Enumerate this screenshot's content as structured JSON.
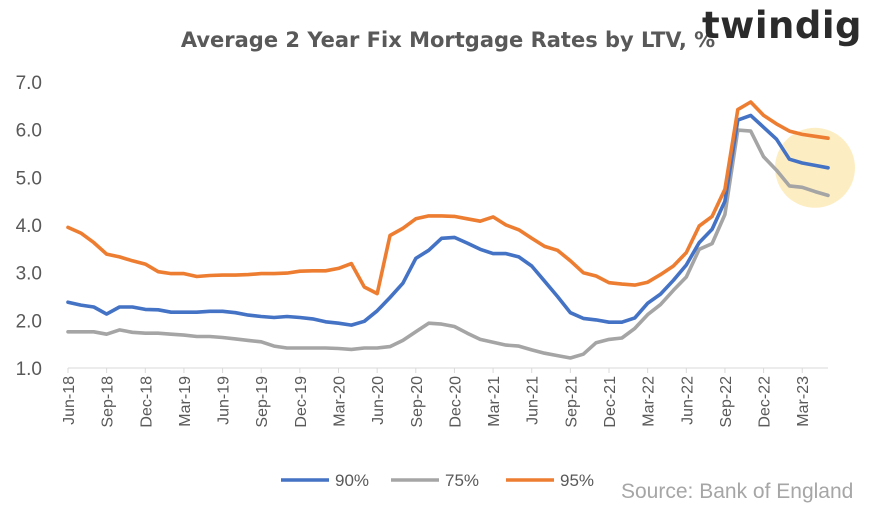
{
  "brand": "twindig",
  "source": "Source: Bank of England",
  "colors": {
    "s90": "#4472c4",
    "s75": "#a5a5a5",
    "s95": "#ed7d31",
    "highlight": "#fdeab8",
    "axis": "#d9d9d9",
    "text": "#595959"
  },
  "chart_data": {
    "type": "line",
    "title": "Average 2 Year Fix Mortgage Rates by LTV, %",
    "xlabel": "",
    "ylabel": "",
    "ylim": [
      1.0,
      7.0
    ],
    "yticks": [
      "1.0",
      "2.0",
      "3.0",
      "4.0",
      "5.0",
      "6.0",
      "7.0"
    ],
    "grid": false,
    "legend": "bottom",
    "x_tick_labels": [
      "Jun-18",
      "Sep-18",
      "Dec-18",
      "Mar-19",
      "Jun-19",
      "Sep-19",
      "Dec-19",
      "Mar-20",
      "Jun-20",
      "Sep-20",
      "Dec-20",
      "Mar-21",
      "Jun-21",
      "Sep-21",
      "Dec-21",
      "Mar-22",
      "Jun-22",
      "Sep-22",
      "Dec-22",
      "Mar-23"
    ],
    "x": [
      "Jun-18",
      "Jul-18",
      "Aug-18",
      "Sep-18",
      "Oct-18",
      "Nov-18",
      "Dec-18",
      "Jan-19",
      "Feb-19",
      "Mar-19",
      "Apr-19",
      "May-19",
      "Jun-19",
      "Jul-19",
      "Aug-19",
      "Sep-19",
      "Oct-19",
      "Nov-19",
      "Dec-19",
      "Jan-20",
      "Feb-20",
      "Mar-20",
      "Apr-20",
      "May-20",
      "Jun-20",
      "Jul-20",
      "Aug-20",
      "Sep-20",
      "Oct-20",
      "Nov-20",
      "Dec-20",
      "Jan-21",
      "Feb-21",
      "Mar-21",
      "Apr-21",
      "May-21",
      "Jun-21",
      "Jul-21",
      "Aug-21",
      "Sep-21",
      "Oct-21",
      "Nov-21",
      "Dec-21",
      "Jan-22",
      "Feb-22",
      "Mar-22",
      "Apr-22",
      "May-22",
      "Jun-22",
      "Jul-22",
      "Aug-22",
      "Sep-22",
      "Oct-22",
      "Nov-22",
      "Dec-22",
      "Jan-23",
      "Feb-23",
      "Mar-23",
      "Apr-23",
      "May-23"
    ],
    "series": [
      {
        "name": "90%",
        "values": [
          2.38,
          2.32,
          2.28,
          2.13,
          2.28,
          2.28,
          2.23,
          2.22,
          2.17,
          2.17,
          2.17,
          2.19,
          2.19,
          2.16,
          2.11,
          2.08,
          2.06,
          2.08,
          2.06,
          2.03,
          1.97,
          1.94,
          1.9,
          1.98,
          2.2,
          2.48,
          2.78,
          3.3,
          3.47,
          3.72,
          3.74,
          3.62,
          3.49,
          3.4,
          3.4,
          3.33,
          3.14,
          2.82,
          2.5,
          2.16,
          2.04,
          2.01,
          1.96,
          1.96,
          2.05,
          2.36,
          2.55,
          2.84,
          3.16,
          3.63,
          3.91,
          4.5,
          6.2,
          6.3,
          6.05,
          5.8,
          5.38,
          5.3,
          5.25,
          5.2
        ]
      },
      {
        "name": "75%",
        "values": [
          1.76,
          1.76,
          1.76,
          1.71,
          1.8,
          1.75,
          1.73,
          1.73,
          1.71,
          1.69,
          1.66,
          1.66,
          1.64,
          1.61,
          1.58,
          1.55,
          1.46,
          1.42,
          1.42,
          1.42,
          1.42,
          1.41,
          1.39,
          1.42,
          1.42,
          1.45,
          1.58,
          1.76,
          1.94,
          1.92,
          1.87,
          1.73,
          1.6,
          1.54,
          1.48,
          1.46,
          1.38,
          1.31,
          1.26,
          1.21,
          1.29,
          1.53,
          1.6,
          1.63,
          1.83,
          2.12,
          2.33,
          2.63,
          2.91,
          3.49,
          3.61,
          4.22,
          5.99,
          5.97,
          5.43,
          5.15,
          4.82,
          4.79,
          4.7,
          4.62
        ]
      },
      {
        "name": "95%",
        "values": [
          3.95,
          3.83,
          3.63,
          3.39,
          3.33,
          3.25,
          3.18,
          3.02,
          2.98,
          2.98,
          2.92,
          2.94,
          2.95,
          2.95,
          2.96,
          2.98,
          2.98,
          2.99,
          3.03,
          3.04,
          3.04,
          3.09,
          3.19,
          2.7,
          2.56,
          3.78,
          3.93,
          4.13,
          4.19,
          4.19,
          4.18,
          4.13,
          4.08,
          4.17,
          4.0,
          3.9,
          3.72,
          3.55,
          3.47,
          3.25,
          3.0,
          2.93,
          2.79,
          2.76,
          2.74,
          2.8,
          2.96,
          3.14,
          3.42,
          3.98,
          4.18,
          4.75,
          6.42,
          6.58,
          6.3,
          6.12,
          5.97,
          5.9,
          5.86,
          5.82
        ]
      }
    ],
    "annotations": []
  }
}
